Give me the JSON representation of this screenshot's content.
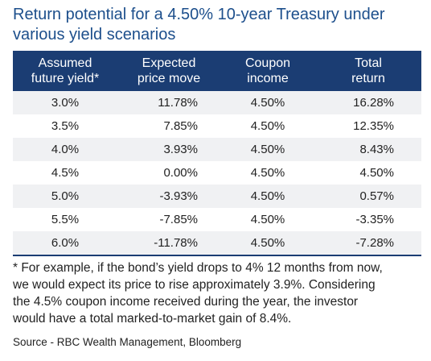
{
  "title": {
    "line1": "Return potential for a 4.50% 10-year Treasury under",
    "line2": "various yield scenarios"
  },
  "chart_data": {
    "type": "table",
    "title": "Return potential for a 4.50% 10-year Treasury under various yield scenarios",
    "columns": [
      [
        "Assumed",
        "future yield*"
      ],
      [
        "Expected",
        "price move"
      ],
      [
        "Coupon",
        "income"
      ],
      [
        "Total",
        "return"
      ]
    ],
    "rows": [
      [
        "3.0%",
        "11.78%",
        "4.50%",
        "16.28%"
      ],
      [
        "3.5%",
        "7.85%",
        "4.50%",
        "12.35%"
      ],
      [
        "4.0%",
        "3.93%",
        "4.50%",
        "8.43%"
      ],
      [
        "4.5%",
        "0.00%",
        "4.50%",
        "4.50%"
      ],
      [
        "5.0%",
        "-3.93%",
        "4.50%",
        "0.57%"
      ],
      [
        "5.5%",
        "-7.85%",
        "4.50%",
        "-3.35%"
      ],
      [
        "6.0%",
        "-11.78%",
        "4.50%",
        "-7.28%"
      ]
    ]
  },
  "footnote": {
    "line1": "* For example, if the bond’s yield drops to 4% 12 months from now,",
    "line2": "we would expect its price to rise approximately 3.9%. Considering",
    "line3": "the 4.5% coupon income received during the year, the investor",
    "line4": "would have a total marked-to-market gain of 8.4%."
  },
  "source": "Source - RBC Wealth Management, Bloomberg",
  "colors": {
    "title": "#1d4f8c",
    "header_bg": "#1b3d73",
    "row_shade": "#f0f1f3"
  }
}
